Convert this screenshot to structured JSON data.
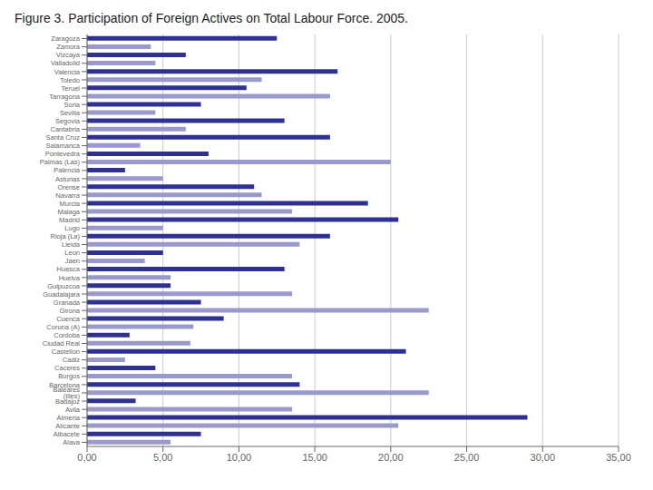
{
  "chart_data": {
    "type": "bar",
    "orientation": "horizontal",
    "title": "Figure 3. Participation of Foreign Actives on Total Labour Force. 2005.",
    "categories": [
      "Zaragoza",
      "Zamora",
      "Vizcaya",
      "Valladolid",
      "Valencia",
      "Toledo",
      "Teruel",
      "Tarragona",
      "Soria",
      "Sevilla",
      "Segovia",
      "Cantabria",
      "Santa Cruz",
      "Salamanca",
      "Pontevedra",
      "Palmas (Las)",
      "Palencia",
      "Asturias",
      "Orense",
      "Navarra",
      "Murcia",
      "Malaga",
      "Madrid",
      "Lugo",
      "Rioja (La)",
      "Lleida",
      "Leon",
      "Jaen",
      "Huesca",
      "Huelva",
      "Guipuzcoa",
      "Guadalajara",
      "Granada",
      "Girona",
      "Cuenca",
      "Coruna (A)",
      "Cordoba",
      "Ciudad Real",
      "Castellon",
      "Cadiz",
      "Caceres",
      "Burgos",
      "Barcelona",
      "Baleares (Illes)",
      "Badajoz",
      "Avila",
      "Almeria",
      "Alicante",
      "Albacete",
      "Alava"
    ],
    "values": [
      12.5,
      4.2,
      6.5,
      4.5,
      16.5,
      11.5,
      10.5,
      16.0,
      7.5,
      4.5,
      13.0,
      6.5,
      16.0,
      3.5,
      8.0,
      20.0,
      2.5,
      5.0,
      11.0,
      11.5,
      18.5,
      13.5,
      20.5,
      5.0,
      16.0,
      14.0,
      5.0,
      3.8,
      13.0,
      5.5,
      5.5,
      13.5,
      7.5,
      22.5,
      9.0,
      7.0,
      2.8,
      6.8,
      21.0,
      2.5,
      4.5,
      13.5,
      14.0,
      22.5,
      3.2,
      13.5,
      29.0,
      20.5,
      7.5,
      5.5
    ],
    "colors": [
      "#2e3192",
      "#9999cc",
      "#2e3192",
      "#9999cc",
      "#2e3192",
      "#9999cc",
      "#2e3192",
      "#9999cc",
      "#2e3192",
      "#9999cc",
      "#2e3192",
      "#9999cc",
      "#2e3192",
      "#9999cc",
      "#2e3192",
      "#9999cc",
      "#2e3192",
      "#9999cc",
      "#2e3192",
      "#9999cc",
      "#2e3192",
      "#9999cc",
      "#2e3192",
      "#9999cc",
      "#2e3192",
      "#9999cc",
      "#2e3192",
      "#9999cc",
      "#2e3192",
      "#9999cc",
      "#2e3192",
      "#9999cc",
      "#2e3192",
      "#9999cc",
      "#2e3192",
      "#9999cc",
      "#2e3192",
      "#9999cc",
      "#2e3192",
      "#9999cc",
      "#2e3192",
      "#9999cc",
      "#2e3192",
      "#9999cc",
      "#2e3192",
      "#9999cc",
      "#2e3192",
      "#9999cc",
      "#2e3192",
      "#9999cc"
    ],
    "xlim": [
      0,
      35
    ],
    "xticks": [
      {
        "value": 0,
        "label": "0,00"
      },
      {
        "value": 5,
        "label": "5,00"
      },
      {
        "value": 10,
        "label": "10,00"
      },
      {
        "value": 15,
        "label": "15,00"
      },
      {
        "value": 20,
        "label": "20,00"
      },
      {
        "value": 25,
        "label": "25,00"
      },
      {
        "value": 30,
        "label": "30,00"
      },
      {
        "value": 35,
        "label": "35,00"
      }
    ],
    "grid": true
  }
}
